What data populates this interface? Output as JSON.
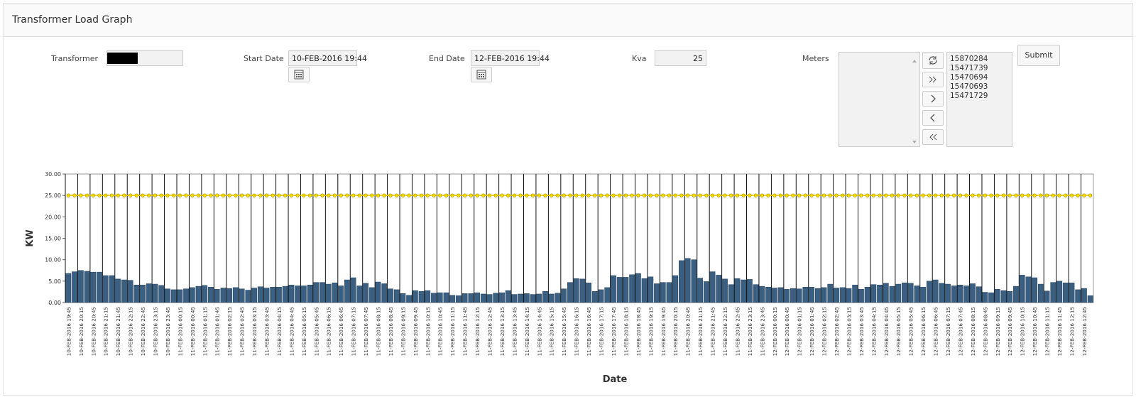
{
  "header": {
    "title": "Transformer Load Graph"
  },
  "form": {
    "transformer": {
      "label": "Transformer"
    },
    "start_date": {
      "label": "Start Date",
      "value": "10-FEB-2016 19:44"
    },
    "end_date": {
      "label": "End Date",
      "value": "12-FEB-2016 19:44"
    },
    "kva": {
      "label": "Kva",
      "value": "25"
    },
    "meters": {
      "label": "Meters",
      "selected": [
        "15870284",
        "15471739",
        "15470694",
        "15470693",
        "15471729"
      ]
    },
    "submit": "Submit"
  },
  "chart_data": {
    "type": "bar",
    "x_label": "Date",
    "y_label": "KW",
    "ylim": [
      0,
      30
    ],
    "yticks": [
      {
        "value": 0,
        "label": "0.00"
      },
      {
        "value": 5,
        "label": "5.00"
      },
      {
        "value": 10,
        "label": "10.00"
      },
      {
        "value": 15,
        "label": "15.00"
      },
      {
        "value": 20,
        "label": "20.00"
      },
      {
        "value": 25,
        "label": "25.00"
      },
      {
        "value": 30,
        "label": "30.00"
      }
    ],
    "categories": [
      "10-FEB-2016 19:45",
      null,
      "10-FEB-2016 20:15",
      null,
      "10-FEB-2016 20:45",
      null,
      "10-FEB-2016 21:15",
      null,
      "10-FEB-2016 21:45",
      null,
      "10-FEB-2016 22:15",
      null,
      "10-FEB-2016 22:45",
      null,
      "10-FEB-2016 23:15",
      null,
      "10-FEB-2016 23:45",
      null,
      "11-FEB-2016 00:15",
      null,
      "11-FEB-2016 00:45",
      null,
      "11-FEB-2016 01:15",
      null,
      "11-FEB-2016 01:45",
      null,
      "11-FEB-2016 02:15",
      null,
      "11-FEB-2016 02:45",
      null,
      "11-FEB-2016 03:15",
      null,
      "11-FEB-2016 03:45",
      null,
      "11-FEB-2016 04:15",
      null,
      "11-FEB-2016 04:45",
      null,
      "11-FEB-2016 05:15",
      null,
      "11-FEB-2016 05:45",
      null,
      "11-FEB-2016 06:15",
      null,
      "11-FEB-2016 06:45",
      null,
      "11-FEB-2016 07:15",
      null,
      "11-FEB-2016 07:45",
      null,
      "11-FEB-2016 08:15",
      null,
      "11-FEB-2016 08:45",
      null,
      "11-FEB-2016 09:15",
      null,
      "11-FEB-2016 09:45",
      null,
      "11-FEB-2016 10:15",
      null,
      "11-FEB-2016 10:45",
      null,
      "11-FEB-2016 11:15",
      null,
      "11-FEB-2016 11:45",
      null,
      "11-FEB-2016 12:15",
      null,
      "11-FEB-2016 12:45",
      null,
      "11-FEB-2016 13:15",
      null,
      "11-FEB-2016 13:45",
      null,
      "11-FEB-2016 14:15",
      null,
      "11-FEB-2016 14:45",
      null,
      "11-FEB-2016 15:15",
      null,
      "11-FEB-2016 15:45",
      null,
      "11-FEB-2016 16:15",
      null,
      "11-FEB-2016 16:45",
      null,
      "11-FEB-2016 17:15",
      null,
      "11-FEB-2016 17:45",
      null,
      "11-FEB-2016 18:15",
      null,
      "11-FEB-2016 18:45",
      null,
      "11-FEB-2016 19:15",
      null,
      "11-FEB-2016 19:45",
      null,
      "11-FEB-2016 20:15",
      null,
      "11-FEB-2016 20:45",
      null,
      "11-FEB-2016 21:15",
      null,
      "11-FEB-2016 21:45",
      null,
      "11-FEB-2016 22:15",
      null,
      "11-FEB-2016 22:45",
      null,
      "11-FEB-2016 23:15",
      null,
      "11-FEB-2016 23:45",
      null,
      "12-FEB-2016 00:15",
      null,
      "12-FEB-2016 00:45",
      null,
      "12-FEB-2016 01:15",
      null,
      "12-FEB-2016 01:45",
      null,
      "12-FEB-2016 02:15",
      null,
      "12-FEB-2016 02:45",
      null,
      "12-FEB-2016 03:15",
      null,
      "12-FEB-2016 03:45",
      null,
      "12-FEB-2016 04:15",
      null,
      "12-FEB-2016 04:45",
      null,
      "12-FEB-2016 05:15",
      null,
      "12-FEB-2016 05:45",
      null,
      "12-FEB-2016 06:15",
      null,
      "12-FEB-2016 06:45",
      null,
      "12-FEB-2016 07:15",
      null,
      "12-FEB-2016 07:45",
      null,
      "12-FEB-2016 08:15",
      null,
      "12-FEB-2016 08:45",
      null,
      "12-FEB-2016 09:15",
      null,
      "12-FEB-2016 09:45",
      null,
      "12-FEB-2016 10:15",
      null,
      "12-FEB-2016 10:45",
      null,
      "12-FEB-2016 11:15",
      null,
      "12-FEB-2016 11:45",
      null,
      "12-FEB-2016 12:15",
      null,
      "12-FEB-2016 12:45",
      null
    ],
    "series": [
      {
        "type": "bar",
        "color": "#3b5f80",
        "values": [
          6.8,
          7.2,
          7.5,
          7.3,
          7.1,
          7.1,
          6.3,
          6.3,
          5.5,
          5.3,
          5.2,
          4.1,
          4.1,
          4.4,
          4.3,
          4.0,
          3.2,
          3.0,
          3.0,
          3.2,
          3.5,
          3.8,
          4.0,
          3.6,
          3.1,
          3.4,
          3.3,
          3.5,
          3.2,
          2.9,
          3.4,
          3.7,
          3.4,
          3.6,
          3.6,
          3.8,
          4.1,
          3.9,
          3.9,
          4.1,
          4.7,
          4.7,
          4.3,
          4.6,
          3.9,
          5.3,
          5.8,
          3.9,
          4.5,
          3.5,
          4.8,
          4.4,
          3.2,
          3.0,
          2.1,
          1.7,
          2.8,
          2.6,
          2.8,
          2.2,
          2.3,
          2.3,
          1.7,
          1.6,
          2.1,
          2.1,
          2.3,
          2.0,
          1.9,
          2.2,
          2.3,
          2.8,
          1.9,
          2.0,
          2.1,
          1.9,
          2.0,
          2.6,
          2.0,
          2.2,
          3.2,
          4.7,
          5.6,
          5.5,
          4.6,
          2.6,
          3.0,
          3.5,
          6.3,
          5.9,
          5.9,
          6.5,
          6.8,
          5.6,
          6.0,
          4.4,
          4.7,
          4.7,
          6.3,
          9.8,
          10.3,
          10.0,
          5.7,
          4.9,
          7.2,
          6.4,
          5.5,
          4.2,
          5.6,
          5.3,
          5.4,
          4.2,
          3.8,
          3.6,
          3.4,
          3.5,
          3.1,
          3.3,
          3.2,
          3.6,
          3.6,
          3.3,
          3.5,
          4.3,
          3.4,
          3.5,
          3.3,
          4.1,
          3.1,
          3.6,
          4.2,
          4.1,
          4.5,
          3.8,
          4.3,
          4.6,
          4.5,
          3.9,
          3.6,
          5.0,
          5.3,
          4.5,
          4.3,
          3.9,
          4.1,
          3.9,
          4.4,
          3.7,
          2.4,
          2.3,
          3.1,
          2.8,
          2.6,
          3.8,
          6.4,
          6.0,
          5.8,
          4.3,
          2.7,
          4.7,
          5.0,
          4.6,
          4.6,
          3.0,
          3.3,
          1.6
        ]
      },
      {
        "type": "line",
        "color": "#e8c800",
        "values": [
          25,
          25,
          25,
          25,
          25,
          25,
          25,
          25,
          25,
          25,
          25,
          25,
          25,
          25,
          25,
          25,
          25,
          25,
          25,
          25,
          25,
          25,
          25,
          25,
          25,
          25,
          25,
          25,
          25,
          25,
          25,
          25,
          25,
          25,
          25,
          25,
          25,
          25,
          25,
          25,
          25,
          25,
          25,
          25,
          25,
          25,
          25,
          25,
          25,
          25,
          25,
          25,
          25,
          25,
          25,
          25,
          25,
          25,
          25,
          25,
          25,
          25,
          25,
          25,
          25,
          25,
          25,
          25,
          25,
          25,
          25,
          25,
          25,
          25,
          25,
          25,
          25,
          25,
          25,
          25,
          25,
          25,
          25,
          25,
          25,
          25,
          25,
          25,
          25,
          25,
          25,
          25,
          25,
          25,
          25,
          25,
          25,
          25,
          25,
          25,
          25,
          25,
          25,
          25,
          25,
          25,
          25,
          25,
          25,
          25,
          25,
          25,
          25,
          25,
          25,
          25,
          25,
          25,
          25,
          25,
          25,
          25,
          25,
          25,
          25,
          25,
          25,
          25,
          25,
          25,
          25,
          25,
          25,
          25,
          25,
          25,
          25,
          25,
          25,
          25,
          25,
          25,
          25,
          25,
          25,
          25,
          25,
          25,
          25,
          25,
          25,
          25,
          25,
          25,
          25,
          25,
          25,
          25,
          25,
          25,
          25,
          25,
          25,
          25,
          25,
          25
        ]
      }
    ]
  }
}
